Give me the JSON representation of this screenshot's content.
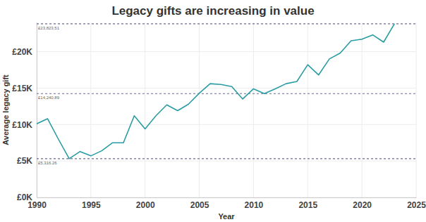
{
  "chart_data": {
    "type": "line",
    "title": "Legacy gifts are increasing in value",
    "x_label": "Year",
    "y_label": "Average legacy gift",
    "x": [
      1990,
      1991,
      1992,
      1993,
      1994,
      1995,
      1996,
      1997,
      1998,
      1999,
      2000,
      2001,
      2002,
      2003,
      2004,
      2005,
      2006,
      2007,
      2008,
      2009,
      2010,
      2011,
      2012,
      2013,
      2014,
      2015,
      2016,
      2017,
      2018,
      2019,
      2020,
      2021,
      2022,
      2023
    ],
    "values": [
      10100,
      10800,
      8000,
      5316.26,
      6300,
      5700,
      6400,
      7500,
      7500,
      11200,
      9400,
      11200,
      12700,
      11900,
      12800,
      14300,
      15600,
      15500,
      15200,
      13500,
      14900,
      14240.89,
      14900,
      15600,
      15900,
      18200,
      16800,
      19000,
      19800,
      21500,
      21700,
      22300,
      21300,
      23823.51
    ],
    "color": "#2a9ca3",
    "xlim": [
      1990,
      2025
    ],
    "xticks": [
      1990,
      1995,
      2000,
      2005,
      2010,
      2015,
      2020,
      2025
    ],
    "ylim": [
      0,
      24000
    ],
    "yticks": [
      {
        "value": 0,
        "label": "£0K"
      },
      {
        "value": 5000,
        "label": "£5K"
      },
      {
        "value": 10000,
        "label": "£10K"
      },
      {
        "value": 15000,
        "label": "£15K"
      },
      {
        "value": 20000,
        "label": "£20K"
      }
    ],
    "grid": true,
    "annotations": [
      {
        "value": 23823.51,
        "label": "£23,823.51"
      },
      {
        "value": 14240.89,
        "label": "£14,240.89"
      },
      {
        "value": 5316.26,
        "label": "£5,316.26"
      }
    ]
  }
}
